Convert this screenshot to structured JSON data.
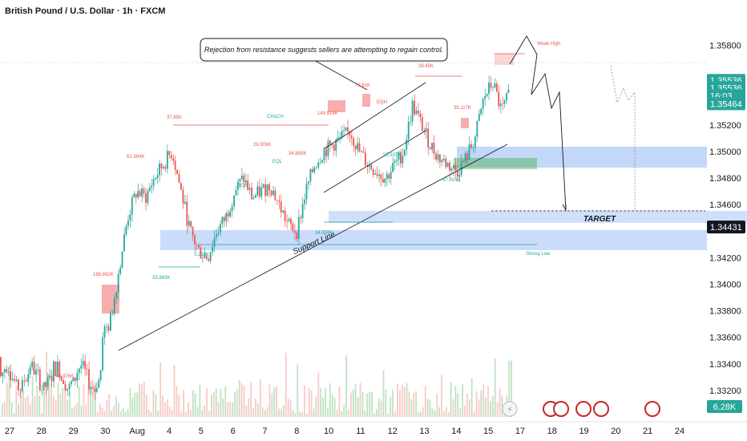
{
  "header": {
    "title": "British Pound / U.S. Dollar · 1h · FXCM"
  },
  "callout": {
    "text": "Rejection from resistance suggests sellers are attempting to regain control."
  },
  "colors": {
    "up": "#26a69a",
    "down": "#ef5350",
    "zone_blue": "#7aa7f0",
    "zone_red": "#f28b8b",
    "zone_green": "#4caf50",
    "line": "#131722"
  },
  "chart_data": {
    "type": "candlestick",
    "title": "British Pound / U.S. Dollar · 1h · FXCM",
    "ylim": [
      1.33,
      1.359
    ],
    "y_ticks": [
      "1.35800",
      "1.35200",
      "1.35000",
      "1.34800",
      "1.34600",
      "1.34200",
      "1.34000",
      "1.33800",
      "1.33600",
      "1.33400",
      "1.33200"
    ],
    "x_ticks": [
      "27",
      "28",
      "29",
      "30",
      "Aug",
      "4",
      "5",
      "6",
      "7",
      "8",
      "10",
      "11",
      "12",
      "13",
      "14",
      "15",
      "17",
      "18",
      "19",
      "20",
      "21",
      "24"
    ],
    "price_labels": [
      {
        "label": "1.35536",
        "value": 1.35536,
        "color": "#26a69a"
      },
      {
        "label": "1.35536",
        "value": 1.3548,
        "color": "#26a69a"
      },
      {
        "label": "16:03",
        "value": 1.3542,
        "color": "#26a69a"
      },
      {
        "label": "1.35464",
        "value": 1.3536,
        "color": "#26a69a"
      },
      {
        "label": "1.34431",
        "value": 1.34431,
        "color": "#131722"
      }
    ],
    "volume_label": "6.28K",
    "series_close_path": [
      1.3362,
      1.337,
      1.341,
      1.345,
      1.347,
      1.3465,
      1.348,
      1.349,
      1.35,
      1.347,
      1.344,
      1.3425,
      1.342,
      1.344,
      1.345,
      1.347,
      1.348,
      1.3465,
      1.347,
      1.3475,
      1.346,
      1.3445,
      1.344,
      1.347,
      1.349,
      1.35,
      1.3505,
      1.351,
      1.3515,
      1.35,
      1.349,
      1.3485,
      1.348,
      1.349,
      1.35,
      1.3535,
      1.352,
      1.3505,
      1.3495,
      1.349,
      1.3485,
      1.3495,
      1.351,
      1.354,
      1.3552,
      1.353,
      1.3545
    ],
    "annotations": [
      {
        "text": "Weak High",
        "color": "#ef5350"
      },
      {
        "text": "CHoCH",
        "color": "#26a69a"
      },
      {
        "text": "BOS",
        "color": "#26a69a"
      },
      {
        "text": "EQH",
        "color": "#ef5350"
      },
      {
        "text": "EQL",
        "color": "#26a69a"
      },
      {
        "text": "37.85K",
        "color": "#ef5350"
      },
      {
        "text": "61.394K",
        "color": "#ef5350"
      },
      {
        "text": "29.909K",
        "color": "#ef5350"
      },
      {
        "text": "34.859K",
        "color": "#ef5350"
      },
      {
        "text": "149.514K",
        "color": "#ef5350"
      },
      {
        "text": "79.81K",
        "color": "#ef5350"
      },
      {
        "text": "28.49K",
        "color": "#ef5350"
      },
      {
        "text": "35.117K",
        "color": "#ef5350"
      },
      {
        "text": "188.892K",
        "color": "#ef5350"
      },
      {
        "text": "45.876K",
        "color": "#ef5350"
      },
      {
        "text": "3.259K",
        "color": "#26a69a"
      },
      {
        "text": "33.843K",
        "color": "#26a69a"
      },
      {
        "text": "34.559K",
        "color": "#26a69a"
      },
      {
        "text": "55.337K",
        "color": "#26a69a"
      },
      {
        "text": "47.924K",
        "color": "#26a69a"
      },
      {
        "text": "Strong Low",
        "color": "#26a69a"
      }
    ],
    "labels": {
      "target": "TARGET",
      "support": "Support Line"
    }
  }
}
